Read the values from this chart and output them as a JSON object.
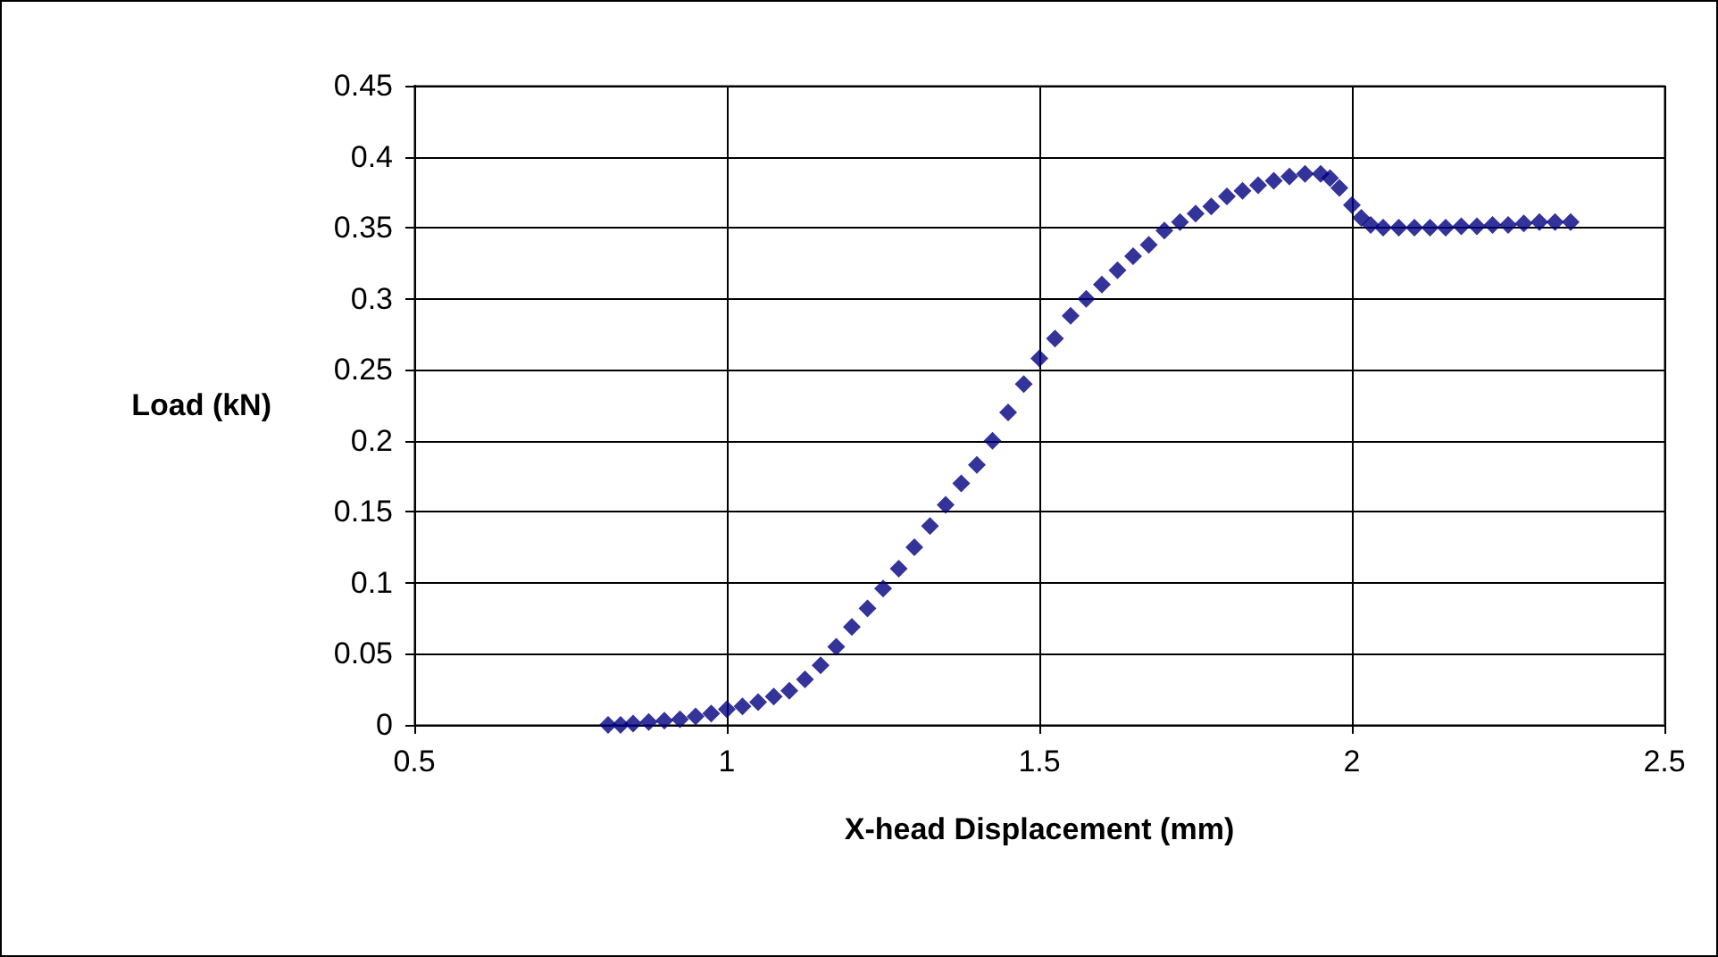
{
  "chart_data": {
    "type": "scatter",
    "xlabel": "X-head Displacement (mm)",
    "ylabel": "Load (kN)",
    "x": [
      0.81,
      0.83,
      0.85,
      0.875,
      0.9,
      0.925,
      0.95,
      0.975,
      1.0,
      1.025,
      1.05,
      1.075,
      1.1,
      1.125,
      1.15,
      1.175,
      1.2,
      1.225,
      1.25,
      1.275,
      1.3,
      1.325,
      1.35,
      1.375,
      1.4,
      1.425,
      1.45,
      1.475,
      1.5,
      1.525,
      1.55,
      1.575,
      1.6,
      1.625,
      1.65,
      1.675,
      1.7,
      1.725,
      1.75,
      1.775,
      1.8,
      1.825,
      1.85,
      1.875,
      1.9,
      1.925,
      1.95,
      1.965,
      1.98,
      2.0,
      2.015,
      2.03,
      2.05,
      2.075,
      2.1,
      2.125,
      2.15,
      2.175,
      2.2,
      2.225,
      2.25,
      2.275,
      2.3,
      2.325,
      2.35
    ],
    "series": [
      {
        "color": "#000080",
        "values": [
          0.0,
          0.0,
          0.001,
          0.002,
          0.003,
          0.004,
          0.006,
          0.008,
          0.011,
          0.013,
          0.016,
          0.02,
          0.024,
          0.032,
          0.042,
          0.055,
          0.069,
          0.082,
          0.096,
          0.11,
          0.125,
          0.14,
          0.155,
          0.17,
          0.183,
          0.2,
          0.22,
          0.24,
          0.258,
          0.272,
          0.288,
          0.3,
          0.31,
          0.32,
          0.33,
          0.338,
          0.348,
          0.354,
          0.36,
          0.365,
          0.372,
          0.376,
          0.38,
          0.383,
          0.386,
          0.388,
          0.388,
          0.385,
          0.378,
          0.366,
          0.357,
          0.352,
          0.35,
          0.35,
          0.35,
          0.35,
          0.35,
          0.351,
          0.351,
          0.352,
          0.352,
          0.353,
          0.354,
          0.354,
          0.354
        ]
      }
    ],
    "xlim": [
      0.5,
      2.5
    ],
    "xticks": [
      0.5,
      1,
      1.5,
      2,
      2.5
    ],
    "ylim": [
      0,
      0.45
    ],
    "yticks": [
      0,
      0.05,
      0.1,
      0.15,
      0.2,
      0.25,
      0.3,
      0.35,
      0.4,
      0.45
    ],
    "grid": true,
    "marker": "diamond"
  }
}
